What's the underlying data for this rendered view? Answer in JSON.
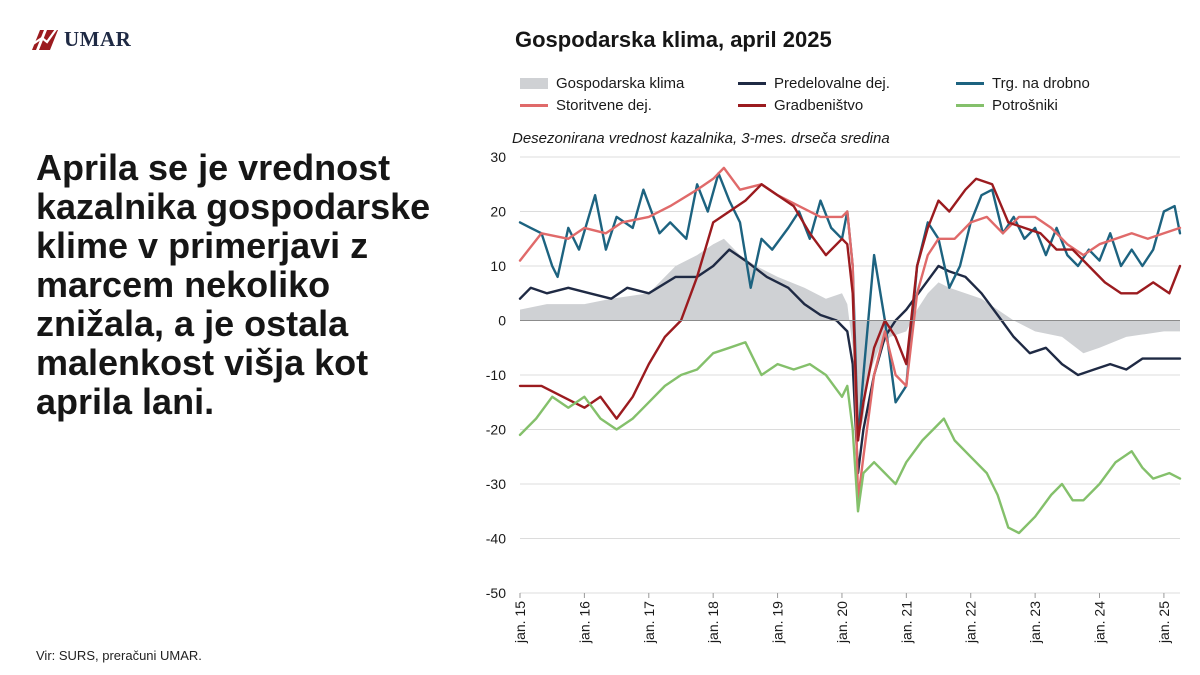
{
  "brand": {
    "name": "UMAR",
    "color": "#9b1b1f"
  },
  "headline": "Aprila se je vrednost kazalnika gospodarske klime v primerjavi z marcem nekoliko znižala, a je ostala malenkost višja kot aprila lani.",
  "source": "Vir: SURS, preračuni UMAR.",
  "chart_data": {
    "type": "line",
    "title": "Gospodarska klima, april 2025",
    "subtitle": "Desezonirana vrednost kazalnika, 3-mes. drseča sredina",
    "ylim": [
      -50,
      30
    ],
    "yticks": [
      30,
      20,
      10,
      0,
      -10,
      -20,
      -30,
      -40,
      -50
    ],
    "x_start": "2015-01",
    "x_end": "2025-04",
    "xticks": [
      "jan. 15",
      "jan. 16",
      "jan. 17",
      "jan. 18",
      "jan. 19",
      "jan. 20",
      "jan. 21",
      "jan. 22",
      "jan. 23",
      "jan. 24",
      "jan. 25"
    ],
    "grid": true,
    "legend_position": "top",
    "series": [
      {
        "name": "Gospodarska klima",
        "style": "area",
        "color": "#cfd1d4",
        "points": [
          [
            "2015-01",
            2
          ],
          [
            "2015-06",
            3
          ],
          [
            "2016-01",
            3
          ],
          [
            "2016-06",
            4
          ],
          [
            "2017-01",
            5
          ],
          [
            "2017-06",
            10
          ],
          [
            "2017-10",
            12
          ],
          [
            "2018-01",
            14
          ],
          [
            "2018-03",
            15
          ],
          [
            "2018-06",
            12
          ],
          [
            "2018-09",
            10
          ],
          [
            "2019-01",
            8
          ],
          [
            "2019-06",
            6
          ],
          [
            "2019-10",
            4
          ],
          [
            "2020-01",
            5
          ],
          [
            "2020-02",
            3
          ],
          [
            "2020-03",
            -5
          ],
          [
            "2020-04",
            -22
          ],
          [
            "2020-05",
            -18
          ],
          [
            "2020-06",
            -10
          ],
          [
            "2020-08",
            -5
          ],
          [
            "2020-10",
            -3
          ],
          [
            "2021-01",
            -2
          ],
          [
            "2021-03",
            2
          ],
          [
            "2021-05",
            5
          ],
          [
            "2021-07",
            7
          ],
          [
            "2021-09",
            6
          ],
          [
            "2021-12",
            5
          ],
          [
            "2022-03",
            4
          ],
          [
            "2022-06",
            2
          ],
          [
            "2022-09",
            0
          ],
          [
            "2023-01",
            -2
          ],
          [
            "2023-06",
            -3
          ],
          [
            "2023-10",
            -6
          ],
          [
            "2024-01",
            -5
          ],
          [
            "2024-06",
            -3
          ],
          [
            "2025-01",
            -2
          ],
          [
            "2025-04",
            -2
          ]
        ]
      },
      {
        "name": "Predelovalne dej.",
        "style": "line",
        "color": "#1f2a44",
        "points": [
          [
            "2015-01",
            4
          ],
          [
            "2015-03",
            6
          ],
          [
            "2015-06",
            5
          ],
          [
            "2015-10",
            6
          ],
          [
            "2016-02",
            5
          ],
          [
            "2016-06",
            4
          ],
          [
            "2016-09",
            6
          ],
          [
            "2017-01",
            5
          ],
          [
            "2017-06",
            8
          ],
          [
            "2017-10",
            8
          ],
          [
            "2018-01",
            10
          ],
          [
            "2018-04",
            13
          ],
          [
            "2018-07",
            11
          ],
          [
            "2018-11",
            8
          ],
          [
            "2019-03",
            6
          ],
          [
            "2019-06",
            3
          ],
          [
            "2019-09",
            1
          ],
          [
            "2019-12",
            0
          ],
          [
            "2020-02",
            -2
          ],
          [
            "2020-03",
            -8
          ],
          [
            "2020-04",
            -28
          ],
          [
            "2020-05",
            -20
          ],
          [
            "2020-07",
            -10
          ],
          [
            "2020-09",
            -3
          ],
          [
            "2020-11",
            0
          ],
          [
            "2021-01",
            2
          ],
          [
            "2021-04",
            6
          ],
          [
            "2021-07",
            10
          ],
          [
            "2021-09",
            9
          ],
          [
            "2021-12",
            8
          ],
          [
            "2022-03",
            5
          ],
          [
            "2022-06",
            1
          ],
          [
            "2022-09",
            -3
          ],
          [
            "2022-12",
            -6
          ],
          [
            "2023-03",
            -5
          ],
          [
            "2023-06",
            -8
          ],
          [
            "2023-09",
            -10
          ],
          [
            "2023-12",
            -9
          ],
          [
            "2024-03",
            -8
          ],
          [
            "2024-06",
            -9
          ],
          [
            "2024-09",
            -7
          ],
          [
            "2024-12",
            -7
          ],
          [
            "2025-04",
            -7
          ]
        ]
      },
      {
        "name": "Trg. na drobno",
        "style": "line",
        "color": "#1d6380",
        "points": [
          [
            "2015-01",
            18
          ],
          [
            "2015-03",
            17
          ],
          [
            "2015-05",
            16
          ],
          [
            "2015-07",
            10
          ],
          [
            "2015-08",
            8
          ],
          [
            "2015-10",
            17
          ],
          [
            "2015-12",
            13
          ],
          [
            "2016-03",
            23
          ],
          [
            "2016-05",
            13
          ],
          [
            "2016-07",
            19
          ],
          [
            "2016-10",
            17
          ],
          [
            "2016-12",
            24
          ],
          [
            "2017-03",
            16
          ],
          [
            "2017-05",
            18
          ],
          [
            "2017-08",
            15
          ],
          [
            "2017-10",
            25
          ],
          [
            "2017-12",
            20
          ],
          [
            "2018-02",
            27
          ],
          [
            "2018-04",
            22
          ],
          [
            "2018-06",
            18
          ],
          [
            "2018-08",
            6
          ],
          [
            "2018-10",
            15
          ],
          [
            "2018-12",
            13
          ],
          [
            "2019-03",
            17
          ],
          [
            "2019-05",
            20
          ],
          [
            "2019-07",
            15
          ],
          [
            "2019-09",
            22
          ],
          [
            "2019-11",
            17
          ],
          [
            "2020-01",
            15
          ],
          [
            "2020-02",
            20
          ],
          [
            "2020-03",
            10
          ],
          [
            "2020-04",
            -22
          ],
          [
            "2020-05",
            -10
          ],
          [
            "2020-07",
            12
          ],
          [
            "2020-09",
            0
          ],
          [
            "2020-11",
            -15
          ],
          [
            "2021-01",
            -12
          ],
          [
            "2021-03",
            10
          ],
          [
            "2021-05",
            18
          ],
          [
            "2021-07",
            15
          ],
          [
            "2021-09",
            6
          ],
          [
            "2021-11",
            10
          ],
          [
            "2022-01",
            18
          ],
          [
            "2022-03",
            23
          ],
          [
            "2022-05",
            24
          ],
          [
            "2022-07",
            16
          ],
          [
            "2022-09",
            19
          ],
          [
            "2022-11",
            15
          ],
          [
            "2023-01",
            17
          ],
          [
            "2023-03",
            12
          ],
          [
            "2023-05",
            17
          ],
          [
            "2023-07",
            12
          ],
          [
            "2023-09",
            10
          ],
          [
            "2023-11",
            13
          ],
          [
            "2024-01",
            11
          ],
          [
            "2024-03",
            16
          ],
          [
            "2024-05",
            10
          ],
          [
            "2024-07",
            13
          ],
          [
            "2024-09",
            10
          ],
          [
            "2024-11",
            13
          ],
          [
            "2025-01",
            20
          ],
          [
            "2025-03",
            21
          ],
          [
            "2025-04",
            16
          ]
        ]
      },
      {
        "name": "Storitvene dej.",
        "style": "line",
        "color": "#e06a6a",
        "points": [
          [
            "2015-01",
            11
          ],
          [
            "2015-05",
            16
          ],
          [
            "2015-10",
            15
          ],
          [
            "2016-01",
            17
          ],
          [
            "2016-05",
            16
          ],
          [
            "2016-08",
            18
          ],
          [
            "2017-01",
            19
          ],
          [
            "2017-05",
            21
          ],
          [
            "2017-10",
            24
          ],
          [
            "2018-01",
            26
          ],
          [
            "2018-03",
            28
          ],
          [
            "2018-06",
            24
          ],
          [
            "2018-10",
            25
          ],
          [
            "2019-01",
            23
          ],
          [
            "2019-05",
            21
          ],
          [
            "2019-09",
            19
          ],
          [
            "2020-01",
            19
          ],
          [
            "2020-02",
            20
          ],
          [
            "2020-03",
            10
          ],
          [
            "2020-04",
            -33
          ],
          [
            "2020-05",
            -25
          ],
          [
            "2020-07",
            -10
          ],
          [
            "2020-09",
            -2
          ],
          [
            "2020-11",
            -10
          ],
          [
            "2021-01",
            -12
          ],
          [
            "2021-03",
            5
          ],
          [
            "2021-05",
            12
          ],
          [
            "2021-07",
            15
          ],
          [
            "2021-10",
            15
          ],
          [
            "2022-01",
            18
          ],
          [
            "2022-04",
            19
          ],
          [
            "2022-07",
            16
          ],
          [
            "2022-10",
            19
          ],
          [
            "2023-01",
            19
          ],
          [
            "2023-04",
            17
          ],
          [
            "2023-07",
            14
          ],
          [
            "2023-10",
            12
          ],
          [
            "2024-01",
            14
          ],
          [
            "2024-04",
            15
          ],
          [
            "2024-07",
            16
          ],
          [
            "2024-10",
            15
          ],
          [
            "2025-01",
            16
          ],
          [
            "2025-04",
            17
          ]
        ]
      },
      {
        "name": "Gradbeništvo",
        "style": "line",
        "color": "#9b1b1f",
        "points": [
          [
            "2015-01",
            -12
          ],
          [
            "2015-05",
            -12
          ],
          [
            "2015-09",
            -14
          ],
          [
            "2016-01",
            -16
          ],
          [
            "2016-04",
            -14
          ],
          [
            "2016-07",
            -18
          ],
          [
            "2016-10",
            -14
          ],
          [
            "2017-01",
            -8
          ],
          [
            "2017-04",
            -3
          ],
          [
            "2017-07",
            0
          ],
          [
            "2017-10",
            8
          ],
          [
            "2018-01",
            18
          ],
          [
            "2018-04",
            20
          ],
          [
            "2018-07",
            22
          ],
          [
            "2018-10",
            25
          ],
          [
            "2019-01",
            23
          ],
          [
            "2019-04",
            21
          ],
          [
            "2019-07",
            16
          ],
          [
            "2019-10",
            12
          ],
          [
            "2020-01",
            15
          ],
          [
            "2020-02",
            14
          ],
          [
            "2020-03",
            5
          ],
          [
            "2020-04",
            -22
          ],
          [
            "2020-05",
            -15
          ],
          [
            "2020-07",
            -5
          ],
          [
            "2020-09",
            0
          ],
          [
            "2020-11",
            -3
          ],
          [
            "2021-01",
            -8
          ],
          [
            "2021-03",
            10
          ],
          [
            "2021-05",
            17
          ],
          [
            "2021-07",
            22
          ],
          [
            "2021-09",
            20
          ],
          [
            "2021-12",
            24
          ],
          [
            "2022-02",
            26
          ],
          [
            "2022-05",
            25
          ],
          [
            "2022-08",
            18
          ],
          [
            "2022-11",
            17
          ],
          [
            "2023-02",
            16
          ],
          [
            "2023-05",
            13
          ],
          [
            "2023-08",
            13
          ],
          [
            "2023-11",
            10
          ],
          [
            "2024-02",
            7
          ],
          [
            "2024-05",
            5
          ],
          [
            "2024-08",
            5
          ],
          [
            "2024-11",
            7
          ],
          [
            "2025-02",
            5
          ],
          [
            "2025-04",
            10
          ]
        ]
      },
      {
        "name": "Potrošniki",
        "style": "line",
        "color": "#84c06b",
        "points": [
          [
            "2015-01",
            -21
          ],
          [
            "2015-04",
            -18
          ],
          [
            "2015-07",
            -14
          ],
          [
            "2015-10",
            -16
          ],
          [
            "2016-01",
            -14
          ],
          [
            "2016-04",
            -18
          ],
          [
            "2016-07",
            -20
          ],
          [
            "2016-10",
            -18
          ],
          [
            "2017-01",
            -15
          ],
          [
            "2017-04",
            -12
          ],
          [
            "2017-07",
            -10
          ],
          [
            "2017-10",
            -9
          ],
          [
            "2018-01",
            -6
          ],
          [
            "2018-04",
            -5
          ],
          [
            "2018-07",
            -4
          ],
          [
            "2018-10",
            -10
          ],
          [
            "2019-01",
            -8
          ],
          [
            "2019-04",
            -9
          ],
          [
            "2019-07",
            -8
          ],
          [
            "2019-10",
            -10
          ],
          [
            "2020-01",
            -14
          ],
          [
            "2020-02",
            -12
          ],
          [
            "2020-03",
            -20
          ],
          [
            "2020-04",
            -35
          ],
          [
            "2020-05",
            -28
          ],
          [
            "2020-07",
            -26
          ],
          [
            "2020-09",
            -28
          ],
          [
            "2020-11",
            -30
          ],
          [
            "2021-01",
            -26
          ],
          [
            "2021-04",
            -22
          ],
          [
            "2021-06",
            -20
          ],
          [
            "2021-08",
            -18
          ],
          [
            "2021-10",
            -22
          ],
          [
            "2022-01",
            -25
          ],
          [
            "2022-04",
            -28
          ],
          [
            "2022-06",
            -32
          ],
          [
            "2022-08",
            -38
          ],
          [
            "2022-10",
            -39
          ],
          [
            "2023-01",
            -36
          ],
          [
            "2023-04",
            -32
          ],
          [
            "2023-06",
            -30
          ],
          [
            "2023-08",
            -33
          ],
          [
            "2023-10",
            -33
          ],
          [
            "2024-01",
            -30
          ],
          [
            "2024-04",
            -26
          ],
          [
            "2024-07",
            -24
          ],
          [
            "2024-09",
            -27
          ],
          [
            "2024-11",
            -29
          ],
          [
            "2025-02",
            -28
          ],
          [
            "2025-04",
            -29
          ]
        ]
      }
    ]
  }
}
